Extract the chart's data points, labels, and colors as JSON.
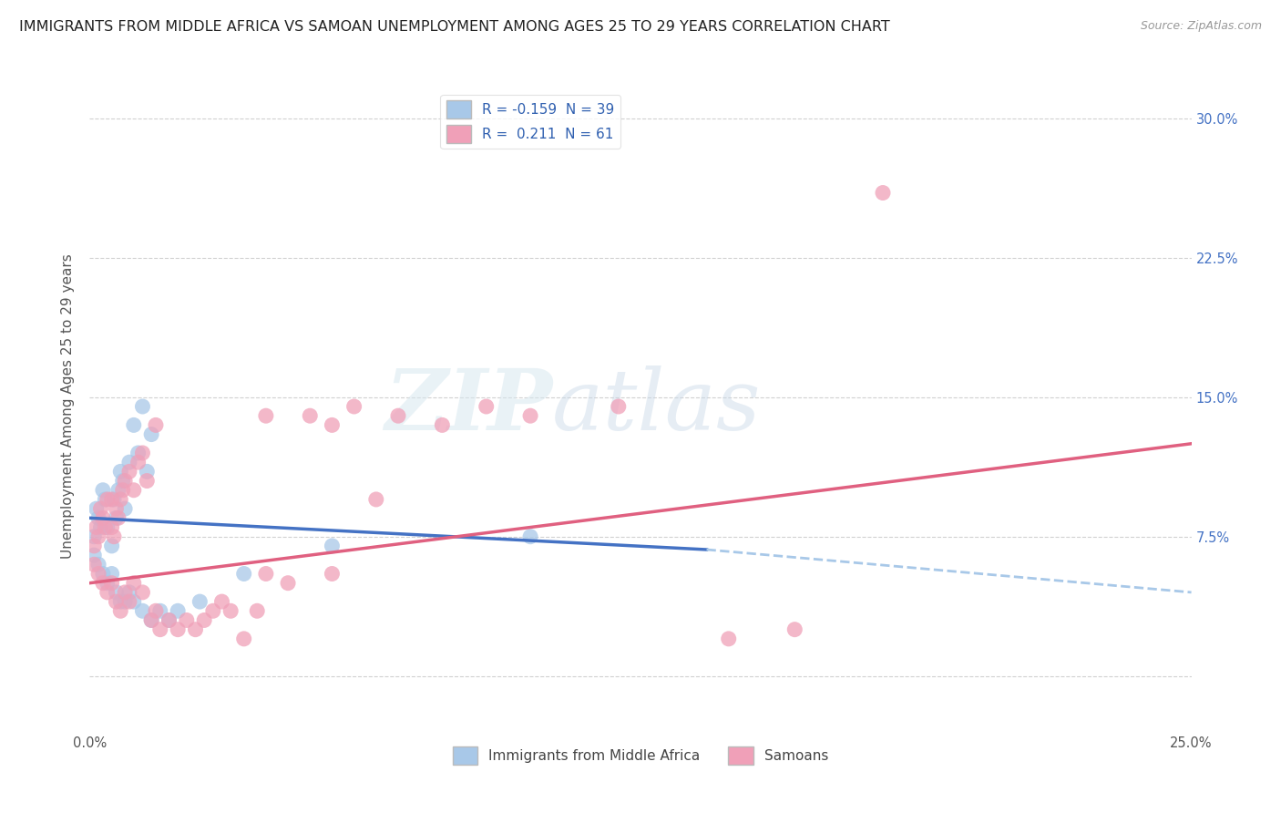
{
  "title": "IMMIGRANTS FROM MIDDLE AFRICA VS SAMOAN UNEMPLOYMENT AMONG AGES 25 TO 29 YEARS CORRELATION CHART",
  "source": "Source: ZipAtlas.com",
  "xlabel_legend": [
    "Immigrants from Middle Africa",
    "Samoans"
  ],
  "ylabel": "Unemployment Among Ages 25 to 29 years",
  "xlim": [
    0.0,
    25.0
  ],
  "ylim": [
    -3.0,
    32.0
  ],
  "yticks": [
    0.0,
    7.5,
    15.0,
    22.5,
    30.0
  ],
  "xticks": [
    0.0,
    5.0,
    10.0,
    15.0,
    20.0,
    25.0
  ],
  "legend": {
    "R1": "-0.159",
    "N1": "39",
    "R2": "0.211",
    "N2": "61"
  },
  "blue_color": "#a8c8e8",
  "pink_color": "#f0a0b8",
  "blue_line_color": "#4472c4",
  "pink_line_color": "#e06080",
  "blue_scatter": [
    [
      0.1,
      7.5
    ],
    [
      0.15,
      9.0
    ],
    [
      0.2,
      8.5
    ],
    [
      0.25,
      8.0
    ],
    [
      0.3,
      10.0
    ],
    [
      0.35,
      9.5
    ],
    [
      0.4,
      8.0
    ],
    [
      0.5,
      7.0
    ],
    [
      0.55,
      9.5
    ],
    [
      0.6,
      8.5
    ],
    [
      0.65,
      10.0
    ],
    [
      0.7,
      11.0
    ],
    [
      0.75,
      10.5
    ],
    [
      0.8,
      9.0
    ],
    [
      0.9,
      11.5
    ],
    [
      1.0,
      13.5
    ],
    [
      1.1,
      12.0
    ],
    [
      1.2,
      14.5
    ],
    [
      1.3,
      11.0
    ],
    [
      1.4,
      13.0
    ],
    [
      0.1,
      6.5
    ],
    [
      0.2,
      6.0
    ],
    [
      0.3,
      5.5
    ],
    [
      0.4,
      5.0
    ],
    [
      0.5,
      5.5
    ],
    [
      0.6,
      4.5
    ],
    [
      0.7,
      4.0
    ],
    [
      0.8,
      4.0
    ],
    [
      0.9,
      4.5
    ],
    [
      1.0,
      4.0
    ],
    [
      1.2,
      3.5
    ],
    [
      1.4,
      3.0
    ],
    [
      1.6,
      3.5
    ],
    [
      1.8,
      3.0
    ],
    [
      2.0,
      3.5
    ],
    [
      2.5,
      4.0
    ],
    [
      3.5,
      5.5
    ],
    [
      5.5,
      7.0
    ],
    [
      10.0,
      7.5
    ]
  ],
  "pink_scatter": [
    [
      0.1,
      7.0
    ],
    [
      0.15,
      8.0
    ],
    [
      0.2,
      7.5
    ],
    [
      0.25,
      9.0
    ],
    [
      0.3,
      8.5
    ],
    [
      0.35,
      8.0
    ],
    [
      0.4,
      9.5
    ],
    [
      0.5,
      8.0
    ],
    [
      0.55,
      7.5
    ],
    [
      0.6,
      9.0
    ],
    [
      0.65,
      8.5
    ],
    [
      0.7,
      9.5
    ],
    [
      0.75,
      10.0
    ],
    [
      0.8,
      10.5
    ],
    [
      0.9,
      11.0
    ],
    [
      1.0,
      10.0
    ],
    [
      1.1,
      11.5
    ],
    [
      1.2,
      12.0
    ],
    [
      1.3,
      10.5
    ],
    [
      1.5,
      13.5
    ],
    [
      0.1,
      6.0
    ],
    [
      0.2,
      5.5
    ],
    [
      0.3,
      5.0
    ],
    [
      0.4,
      4.5
    ],
    [
      0.5,
      5.0
    ],
    [
      0.6,
      4.0
    ],
    [
      0.7,
      3.5
    ],
    [
      0.8,
      4.5
    ],
    [
      0.9,
      4.0
    ],
    [
      1.0,
      5.0
    ],
    [
      1.2,
      4.5
    ],
    [
      1.4,
      3.0
    ],
    [
      1.5,
      3.5
    ],
    [
      1.6,
      2.5
    ],
    [
      1.8,
      3.0
    ],
    [
      2.0,
      2.5
    ],
    [
      2.2,
      3.0
    ],
    [
      2.4,
      2.5
    ],
    [
      2.6,
      3.0
    ],
    [
      2.8,
      3.5
    ],
    [
      3.0,
      4.0
    ],
    [
      3.2,
      3.5
    ],
    [
      3.5,
      2.0
    ],
    [
      3.8,
      3.5
    ],
    [
      4.0,
      5.5
    ],
    [
      4.5,
      5.0
    ],
    [
      5.0,
      14.0
    ],
    [
      5.5,
      5.5
    ],
    [
      6.0,
      14.5
    ],
    [
      6.5,
      9.5
    ],
    [
      7.0,
      14.0
    ],
    [
      8.0,
      13.5
    ],
    [
      9.0,
      14.5
    ],
    [
      10.0,
      14.0
    ],
    [
      12.0,
      14.5
    ],
    [
      14.5,
      2.0
    ],
    [
      16.0,
      2.5
    ],
    [
      18.0,
      26.0
    ],
    [
      5.5,
      13.5
    ],
    [
      4.0,
      14.0
    ],
    [
      0.5,
      9.5
    ]
  ],
  "blue_trend": {
    "x_start": 0.0,
    "y_start": 8.5,
    "x_end": 14.0,
    "y_end": 6.8
  },
  "blue_dashed_trend": {
    "x_start": 14.0,
    "y_start": 6.8,
    "x_end": 25.0,
    "y_end": 4.5
  },
  "pink_trend": {
    "x_start": 0.0,
    "y_start": 5.0,
    "x_end": 25.0,
    "y_end": 12.5
  },
  "watermark_zip": "ZIP",
  "watermark_atlas": "atlas",
  "background_color": "#ffffff",
  "grid_color": "#cccccc",
  "title_fontsize": 11.5,
  "axis_label_fontsize": 11,
  "tick_fontsize": 10.5
}
